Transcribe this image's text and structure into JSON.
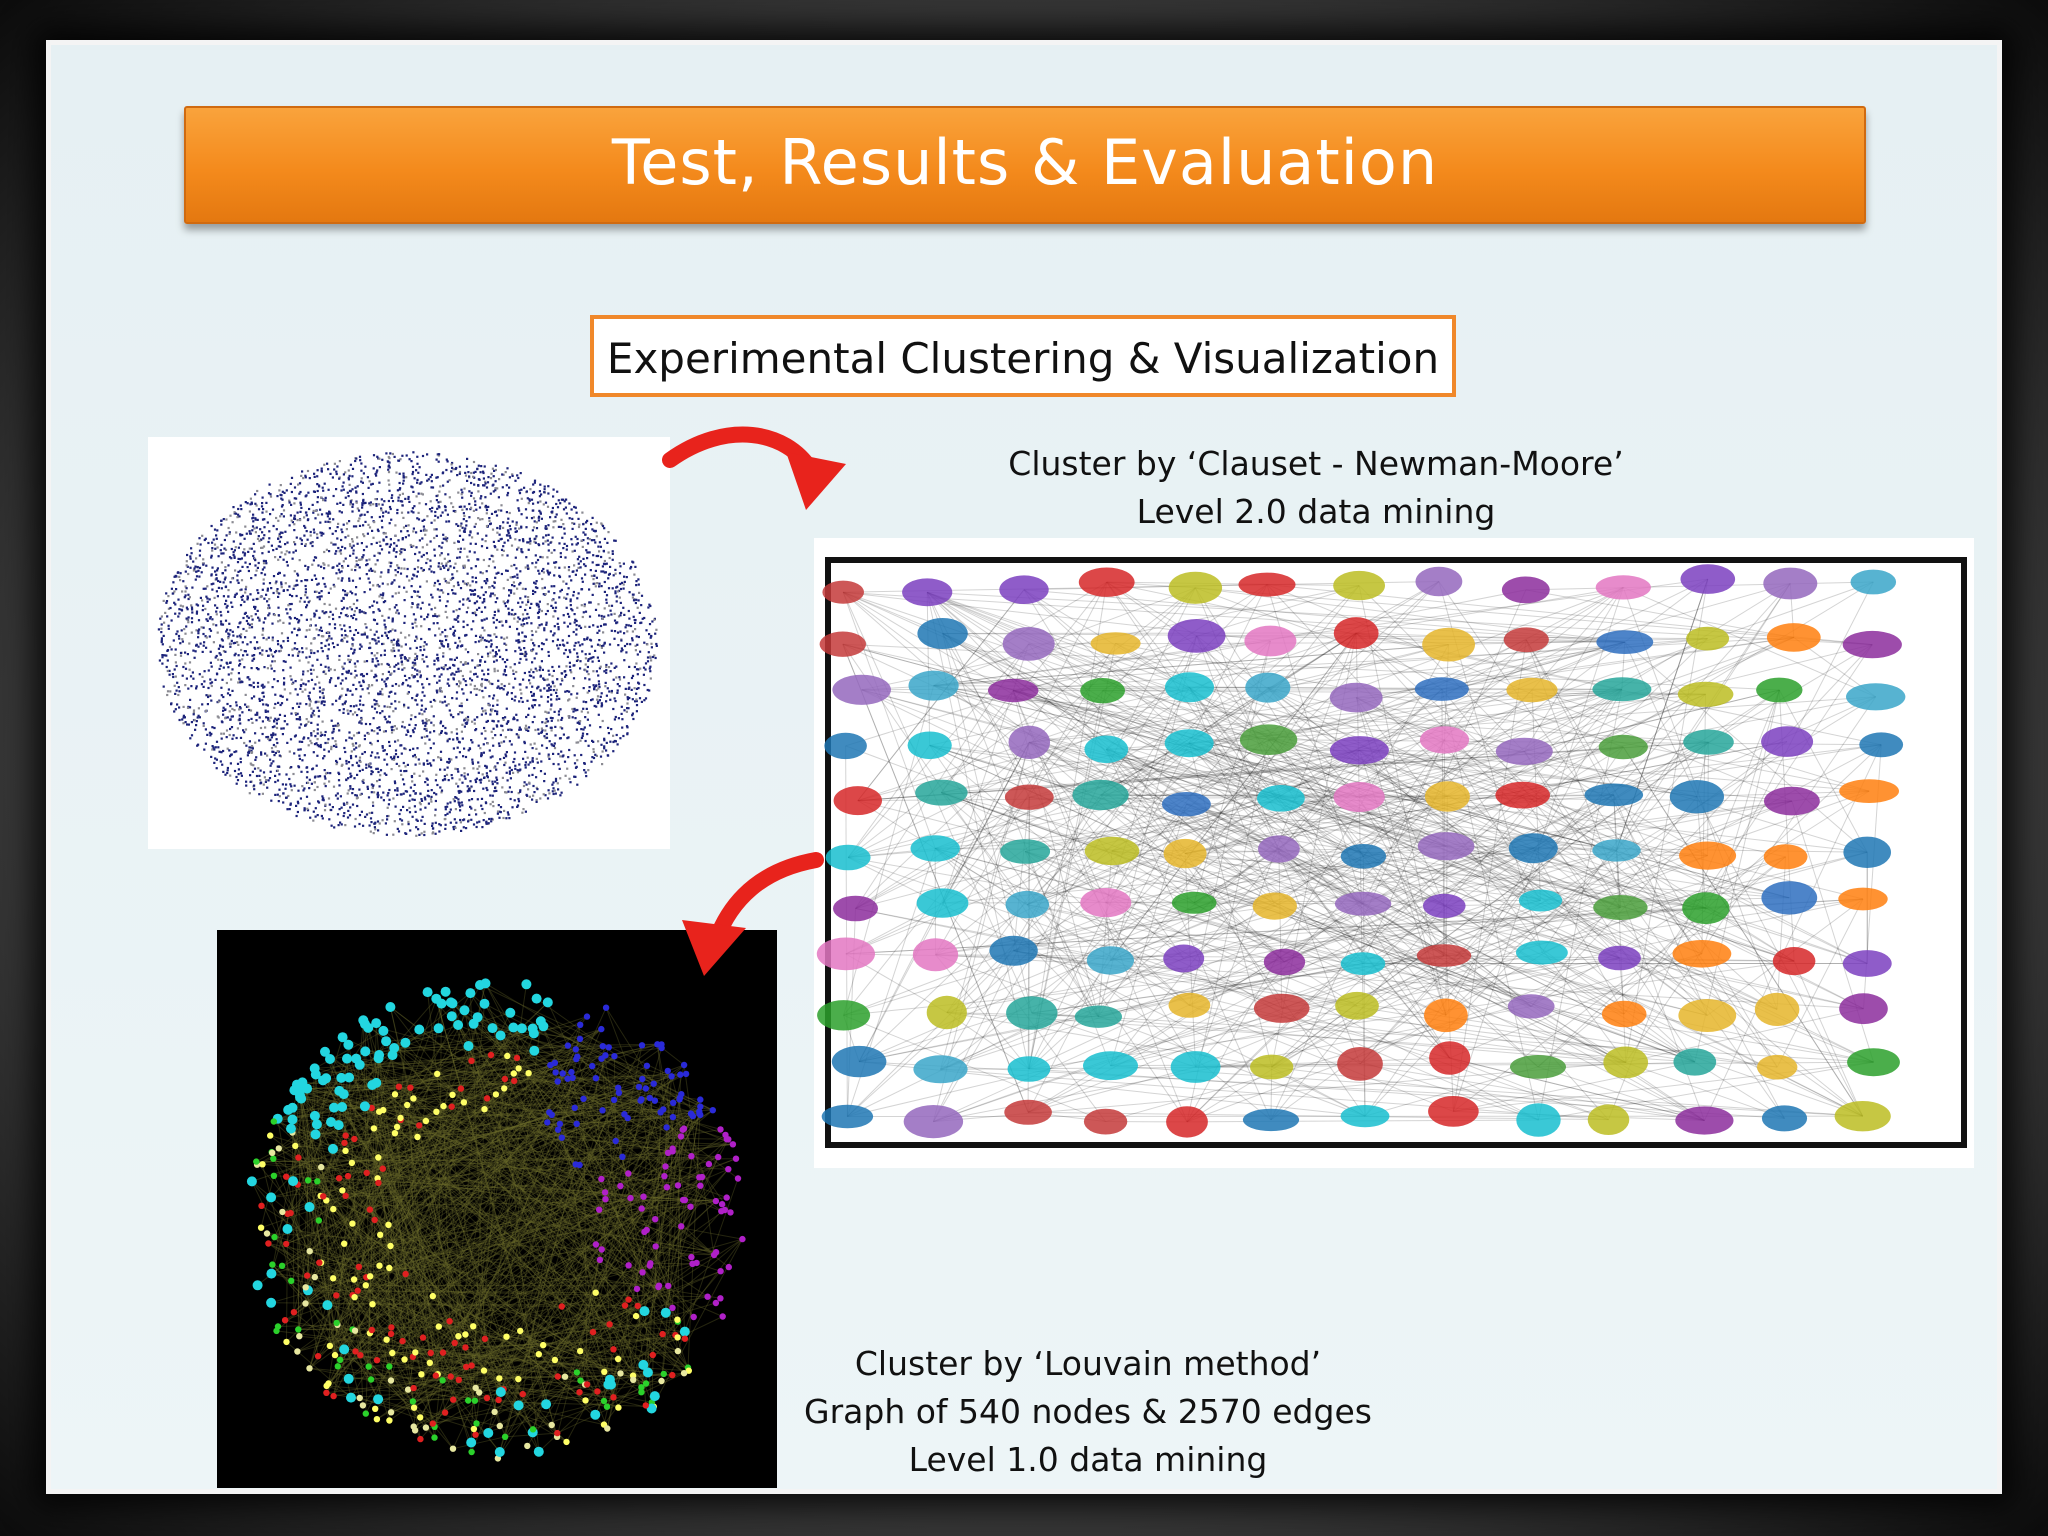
{
  "slide": {
    "title": "Test, Results & Evaluation",
    "subtitle": "Experimental Clustering & Visualization"
  },
  "captions": {
    "cnm": {
      "line1": "Cluster by  ‘Clauset - Newman-Moore’",
      "line2": "Level 2.0 data mining"
    },
    "louvain": {
      "line1": "Cluster by ‘Louvain method’",
      "line2": "Graph of 540 nodes & 2570 edges",
      "line3": "Level 1.0 data mining"
    }
  },
  "colors": {
    "title_bar": "#f48a1c",
    "subtitle_border": "#f0882a",
    "arrow": "#e8231c",
    "raw_graph_nodes": "#1c237a",
    "cluster_palette": [
      "#1f77b4",
      "#2ca02c",
      "#d62728",
      "#9467bd",
      "#e377c2",
      "#bcbd22",
      "#17becf",
      "#ff7f0e",
      "#8c2d9c",
      "#4a9e3b",
      "#2e6fbf",
      "#e5b52a",
      "#3aa6c9",
      "#c43a3a",
      "#26a69a",
      "#7b3fbf"
    ],
    "louvain_palette": [
      "#23d6e0",
      "#ffff66",
      "#2bd12b",
      "#e02020",
      "#2a2ad8",
      "#b020c8",
      "#e8e8a0"
    ]
  },
  "images": {
    "raw_graph": "raw-network-graph",
    "cnm_graph": "clauset-newman-moore-cluster-graph",
    "louvain_graph": "louvain-cluster-graph"
  }
}
